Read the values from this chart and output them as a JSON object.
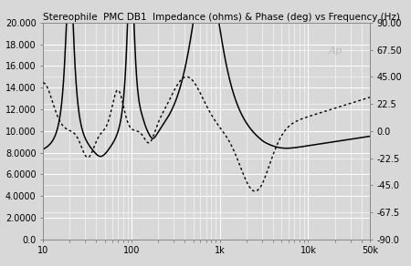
{
  "title": "Stereophile  PMC DB1  Impedance (ohms) & Phase (deg) vs Frequency (Hz)",
  "xlim": [
    10,
    50000
  ],
  "ylim_left": [
    0,
    20
  ],
  "ylim_right": [
    -90,
    90
  ],
  "yticks_left": [
    0,
    2,
    4,
    6,
    8,
    10,
    12,
    14,
    16,
    18,
    20
  ],
  "ytick_labels_left": [
    "0.0",
    "2.0000",
    "4.0000",
    "6.0000",
    "8.0000",
    "10.000",
    "12.000",
    "14.000",
    "16.000",
    "18.000",
    "20.000"
  ],
  "yticks_right": [
    -90,
    -67.5,
    -45,
    -22.5,
    0,
    22.5,
    45,
    67.5,
    90
  ],
  "ytick_labels_right": [
    "-90.0",
    "-67.5",
    "-45.0",
    "-22.5",
    "0.0",
    "22.5",
    "45.00",
    "67.50",
    "90.00"
  ],
  "xticks": [
    10,
    100,
    1000,
    10000,
    50000
  ],
  "xtick_labels": [
    "10",
    "100",
    "1k",
    "10k",
    "50k"
  ],
  "watermark": "Ap",
  "background_color": "#d8d8d8",
  "grid_color": "#ffffff",
  "line_color_impedance": "#000000",
  "line_color_phase": "#000000",
  "title_fontsize": 7.5,
  "tick_fontsize": 7.0
}
